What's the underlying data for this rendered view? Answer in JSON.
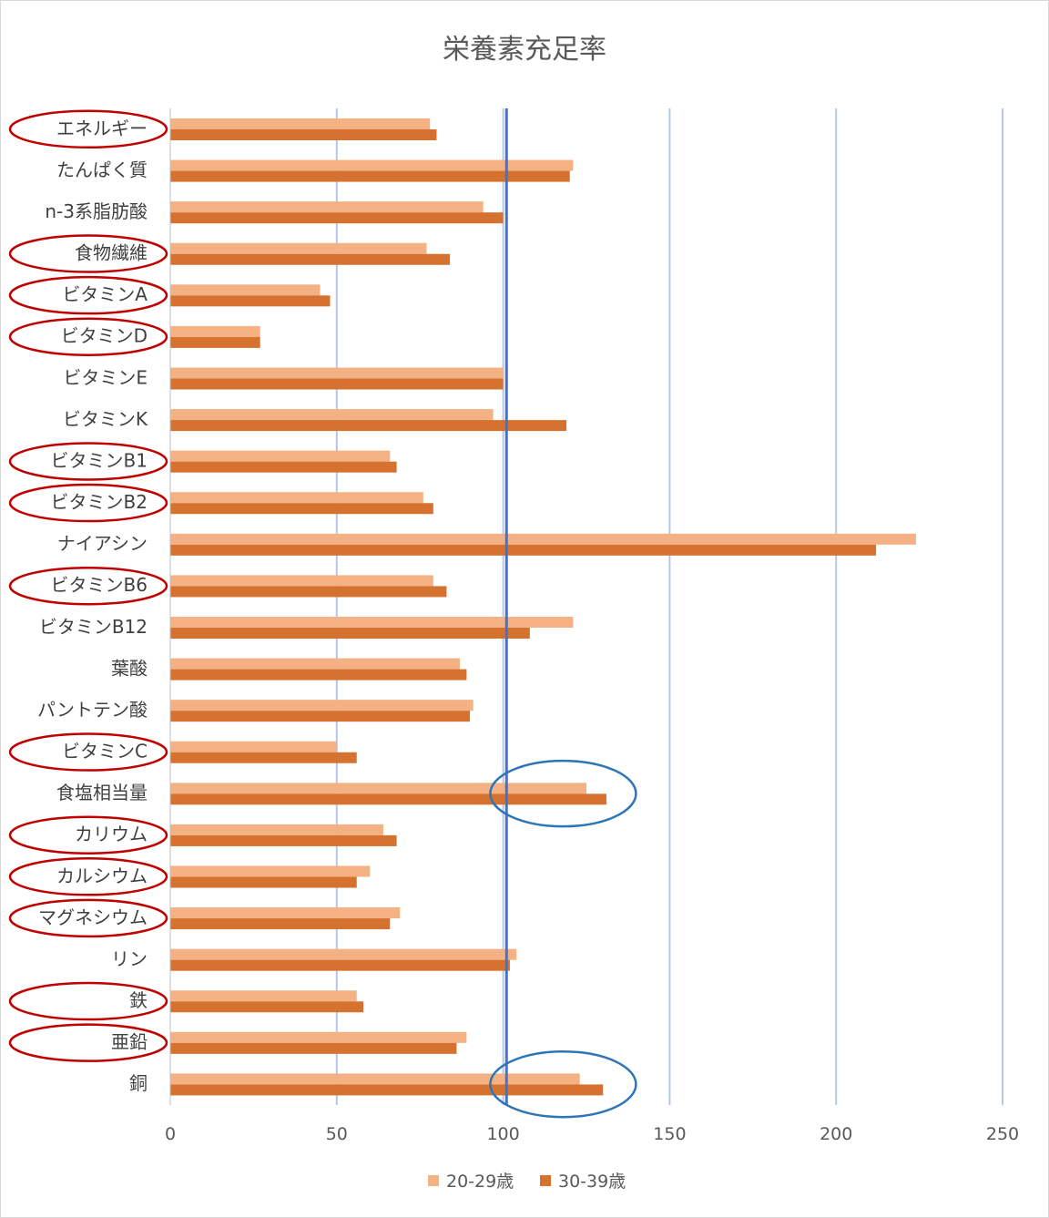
{
  "chart_data": {
    "type": "bar",
    "orientation": "horizontal",
    "title": "栄養素充足率",
    "xlabel": "",
    "ylabel": "",
    "xlim": [
      0,
      250
    ],
    "x_ticks": [
      "0",
      "50",
      "100",
      "150",
      "200",
      "250"
    ],
    "grid": "vertical",
    "legend_position": "bottom",
    "reference_line": {
      "value": 101,
      "color": "#4472c4"
    },
    "categories": [
      "エネルギー",
      "たんぱく質",
      "n-3系脂肪酸",
      "食物繊維",
      "ビタミンA",
      "ビタミンD",
      "ビタミンE",
      "ビタミンK",
      "ビタミンB1",
      "ビタミンB2",
      "ナイアシン",
      "ビタミンB6",
      "ビタミンB12",
      "葉酸",
      "パントテン酸",
      "ビタミンC",
      "食塩相当量",
      "カリウム",
      "カルシウム",
      "マグネシウム",
      "リン",
      "鉄",
      "亜鉛",
      "銅"
    ],
    "series": [
      {
        "name": "20-29歳",
        "color": "#f4b183",
        "values": [
          78,
          121,
          94,
          77,
          45,
          27,
          100,
          97,
          66,
          76,
          224,
          79,
          121,
          87,
          91,
          50,
          125,
          64,
          60,
          69,
          104,
          56,
          89,
          123
        ]
      },
      {
        "name": "30-39歳",
        "color": "#d6722f",
        "values": [
          80,
          120,
          100,
          84,
          48,
          27,
          100,
          119,
          68,
          79,
          212,
          83,
          108,
          89,
          90,
          56,
          131,
          68,
          56,
          66,
          102,
          58,
          86,
          130
        ]
      }
    ],
    "annotations": {
      "red_circled_categories": [
        "エネルギー",
        "食物繊維",
        "ビタミンA",
        "ビタミンD",
        "ビタミンB1",
        "ビタミンB2",
        "ビタミンB6",
        "ビタミンC",
        "カリウム",
        "カルシウム",
        "マグネシウム",
        "鉄",
        "亜鉛"
      ],
      "blue_circled_categories": [
        "食塩相当量",
        "銅"
      ],
      "red_color": "#c00000",
      "blue_color": "#2e75b6"
    }
  }
}
